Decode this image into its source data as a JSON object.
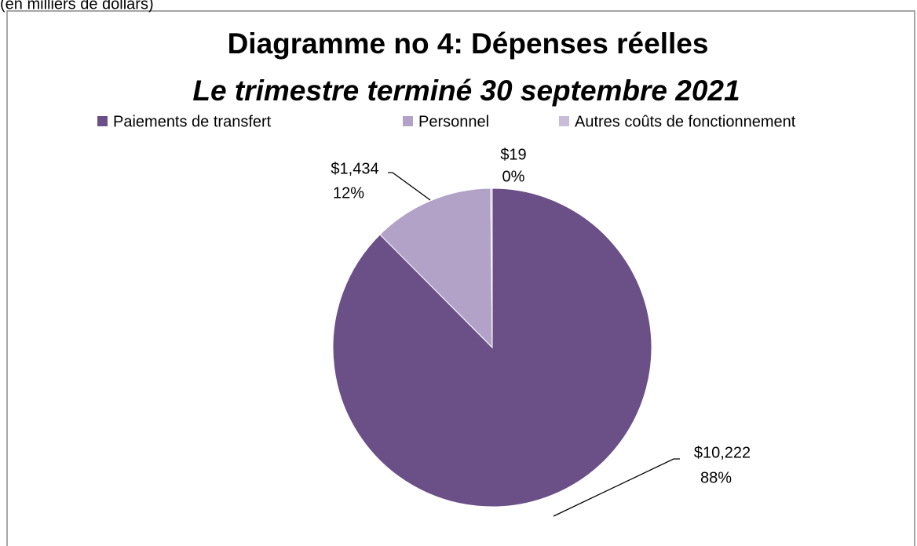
{
  "chart_data": {
    "type": "pie",
    "note": "(en milliers de dollars)",
    "title": "Diagramme no 4: Dépenses réelles",
    "subtitle": "Le trimestre terminé 30 septembre 2021",
    "categories": [
      "Paiements de transfert",
      "Personnel",
      "Autres coûts de fonctionnement"
    ],
    "values": [
      10222,
      1434,
      19
    ],
    "value_labels": [
      "$10,222",
      "$1,434",
      "$19"
    ],
    "percent_labels": [
      "88%",
      "12%",
      "0%"
    ],
    "colors": [
      "#6a5087",
      "#b3a2c7",
      "#c8bcd8"
    ],
    "legend": "top"
  }
}
